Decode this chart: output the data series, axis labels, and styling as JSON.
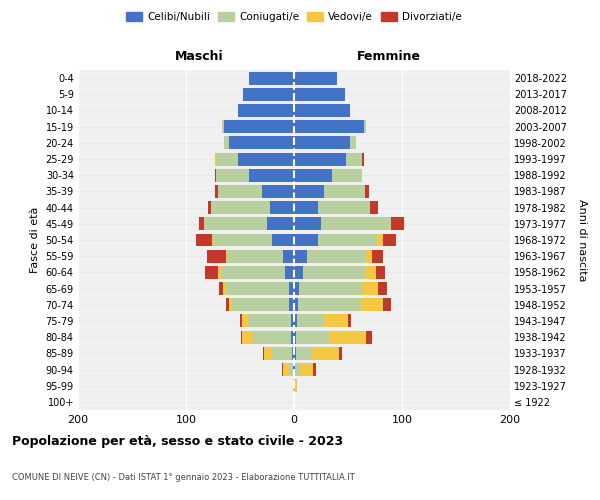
{
  "age_groups": [
    "100+",
    "95-99",
    "90-94",
    "85-89",
    "80-84",
    "75-79",
    "70-74",
    "65-69",
    "60-64",
    "55-59",
    "50-54",
    "45-49",
    "40-44",
    "35-39",
    "30-34",
    "25-29",
    "20-24",
    "15-19",
    "10-14",
    "5-9",
    "0-4"
  ],
  "birth_years": [
    "≤ 1922",
    "1923-1927",
    "1928-1932",
    "1933-1937",
    "1938-1942",
    "1943-1947",
    "1948-1952",
    "1953-1957",
    "1958-1962",
    "1963-1967",
    "1968-1972",
    "1973-1977",
    "1978-1982",
    "1983-1987",
    "1988-1992",
    "1993-1997",
    "1998-2002",
    "2003-2007",
    "2008-2012",
    "2013-2017",
    "2018-2022"
  ],
  "males": {
    "celibi": [
      0,
      0,
      1,
      2,
      3,
      3,
      5,
      5,
      8,
      10,
      20,
      25,
      22,
      30,
      42,
      52,
      60,
      65,
      52,
      47,
      42
    ],
    "coniugati": [
      0,
      0,
      4,
      18,
      35,
      40,
      52,
      58,
      60,
      52,
      55,
      58,
      55,
      40,
      30,
      20,
      5,
      2,
      0,
      0,
      0
    ],
    "vedovi": [
      0,
      1,
      5,
      8,
      10,
      5,
      3,
      3,
      2,
      1,
      1,
      0,
      0,
      0,
      0,
      1,
      0,
      0,
      0,
      0,
      0
    ],
    "divorziati": [
      0,
      0,
      1,
      1,
      1,
      2,
      3,
      3,
      12,
      18,
      15,
      5,
      3,
      3,
      1,
      0,
      0,
      0,
      0,
      0,
      0
    ]
  },
  "females": {
    "nubili": [
      0,
      0,
      1,
      2,
      2,
      3,
      4,
      5,
      8,
      12,
      22,
      25,
      22,
      28,
      35,
      48,
      52,
      65,
      52,
      47,
      40
    ],
    "coniugate": [
      0,
      1,
      5,
      15,
      30,
      25,
      58,
      58,
      58,
      55,
      55,
      65,
      48,
      38,
      28,
      15,
      5,
      2,
      0,
      0,
      0
    ],
    "vedove": [
      0,
      2,
      12,
      25,
      35,
      22,
      20,
      15,
      10,
      5,
      5,
      0,
      0,
      0,
      0,
      0,
      0,
      0,
      0,
      0,
      0
    ],
    "divorziate": [
      0,
      0,
      2,
      2,
      5,
      3,
      8,
      8,
      8,
      10,
      12,
      12,
      8,
      3,
      0,
      2,
      0,
      0,
      0,
      0,
      0
    ]
  },
  "colors": {
    "celibi": "#4472c4",
    "coniugati": "#b8cfa0",
    "vedovi": "#f5c842",
    "divorziati": "#c0392b"
  },
  "title": "Popolazione per età, sesso e stato civile - 2023",
  "subtitle": "COMUNE DI NEIVE (CN) - Dati ISTAT 1° gennaio 2023 - Elaborazione TUTTITALIA.IT",
  "ylabel_left": "Fasce di età",
  "ylabel_right": "Anni di nascita",
  "xlabel_left": "Maschi",
  "xlabel_right": "Femmine",
  "xlim": 200,
  "bg_color": "#f0f0f0",
  "grid_color": "#cccccc"
}
